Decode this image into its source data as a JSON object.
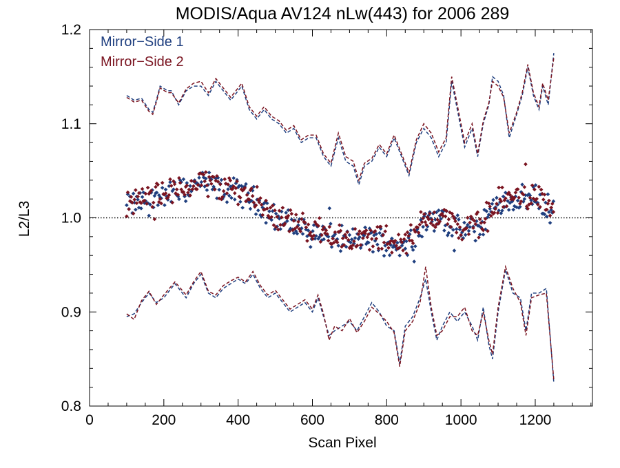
{
  "chart_data": {
    "type": "scatter",
    "title": "MODIS/Aqua AV124 nLw(443) for 2006 289",
    "xlabel": "Scan Pixel",
    "ylabel": "L2/L3",
    "xlim": [
      0,
      1354
    ],
    "ylim": [
      0.8,
      1.2
    ],
    "x_ticks": [
      0,
      200,
      400,
      600,
      800,
      1000,
      1200
    ],
    "y_ticks": [
      0.8,
      0.9,
      1.0,
      1.1,
      1.2
    ],
    "x_tick_labels": [
      "0",
      "200",
      "400",
      "600",
      "800",
      "1000",
      "1200"
    ],
    "y_tick_labels": [
      "0.8",
      "0.9",
      "1.0",
      "1.1",
      "1.2"
    ],
    "reference_line": 1.0,
    "legend_position": "top-left",
    "series": [
      {
        "name": "Mirror−Side 1",
        "color": "#1f3f7f",
        "mean": [
          [
            100,
            1.012
          ],
          [
            150,
            1.018
          ],
          [
            200,
            1.025
          ],
          [
            250,
            1.028
          ],
          [
            300,
            1.038
          ],
          [
            350,
            1.03
          ],
          [
            400,
            1.028
          ],
          [
            450,
            1.018
          ],
          [
            500,
            1.0
          ],
          [
            550,
            0.992
          ],
          [
            600,
            0.985
          ],
          [
            650,
            0.98
          ],
          [
            700,
            0.975
          ],
          [
            750,
            0.978
          ],
          [
            800,
            0.975
          ],
          [
            850,
            0.97
          ],
          [
            900,
            0.995
          ],
          [
            950,
            1.0
          ],
          [
            1000,
            0.985
          ],
          [
            1050,
            0.99
          ],
          [
            1100,
            1.015
          ],
          [
            1150,
            1.02
          ],
          [
            1200,
            1.022
          ],
          [
            1250,
            1.005
          ]
        ],
        "upper": [
          [
            100,
            1.13
          ],
          [
            120,
            1.125
          ],
          [
            140,
            1.127
          ],
          [
            160,
            1.115
          ],
          [
            170,
            1.112
          ],
          [
            180,
            1.125
          ],
          [
            190,
            1.14
          ],
          [
            210,
            1.135
          ],
          [
            220,
            1.135
          ],
          [
            240,
            1.12
          ],
          [
            260,
            1.135
          ],
          [
            280,
            1.14
          ],
          [
            300,
            1.14
          ],
          [
            320,
            1.13
          ],
          [
            340,
            1.145
          ],
          [
            360,
            1.135
          ],
          [
            380,
            1.125
          ],
          [
            390,
            1.13
          ],
          [
            410,
            1.14
          ],
          [
            430,
            1.115
          ],
          [
            450,
            1.105
          ],
          [
            470,
            1.115
          ],
          [
            490,
            1.105
          ],
          [
            510,
            1.1
          ],
          [
            530,
            1.09
          ],
          [
            550,
            1.095
          ],
          [
            570,
            1.08
          ],
          [
            590,
            1.085
          ],
          [
            610,
            1.085
          ],
          [
            630,
            1.065
          ],
          [
            650,
            1.055
          ],
          [
            670,
            1.085
          ],
          [
            690,
            1.06
          ],
          [
            710,
            1.055
          ],
          [
            725,
            1.035
          ],
          [
            740,
            1.055
          ],
          [
            760,
            1.06
          ],
          [
            780,
            1.075
          ],
          [
            800,
            1.065
          ],
          [
            820,
            1.085
          ],
          [
            840,
            1.065
          ],
          [
            860,
            1.045
          ],
          [
            880,
            1.08
          ],
          [
            900,
            1.095
          ],
          [
            920,
            1.085
          ],
          [
            940,
            1.065
          ],
          [
            960,
            1.08
          ],
          [
            975,
            1.145
          ],
          [
            990,
            1.115
          ],
          [
            1010,
            1.075
          ],
          [
            1030,
            1.095
          ],
          [
            1045,
            1.065
          ],
          [
            1060,
            1.1
          ],
          [
            1075,
            1.12
          ],
          [
            1085,
            1.15
          ],
          [
            1100,
            1.145
          ],
          [
            1115,
            1.13
          ],
          [
            1130,
            1.085
          ],
          [
            1150,
            1.11
          ],
          [
            1165,
            1.13
          ],
          [
            1180,
            1.16
          ],
          [
            1195,
            1.13
          ],
          [
            1210,
            1.115
          ],
          [
            1220,
            1.14
          ],
          [
            1235,
            1.12
          ],
          [
            1250,
            1.175
          ]
        ],
        "lower": [
          [
            100,
            0.895
          ],
          [
            120,
            0.898
          ],
          [
            140,
            0.91
          ],
          [
            160,
            0.92
          ],
          [
            180,
            0.91
          ],
          [
            200,
            0.915
          ],
          [
            230,
            0.93
          ],
          [
            260,
            0.915
          ],
          [
            280,
            0.93
          ],
          [
            300,
            0.94
          ],
          [
            320,
            0.92
          ],
          [
            340,
            0.915
          ],
          [
            360,
            0.925
          ],
          [
            380,
            0.93
          ],
          [
            400,
            0.935
          ],
          [
            420,
            0.93
          ],
          [
            440,
            0.94
          ],
          [
            460,
            0.925
          ],
          [
            480,
            0.915
          ],
          [
            500,
            0.92
          ],
          [
            520,
            0.91
          ],
          [
            540,
            0.9
          ],
          [
            560,
            0.905
          ],
          [
            580,
            0.91
          ],
          [
            600,
            0.9
          ],
          [
            615,
            0.915
          ],
          [
            630,
            0.895
          ],
          [
            645,
            0.875
          ],
          [
            660,
            0.88
          ],
          [
            680,
            0.885
          ],
          [
            700,
            0.89
          ],
          [
            720,
            0.88
          ],
          [
            740,
            0.895
          ],
          [
            760,
            0.91
          ],
          [
            780,
            0.9
          ],
          [
            800,
            0.885
          ],
          [
            820,
            0.88
          ],
          [
            835,
            0.845
          ],
          [
            850,
            0.885
          ],
          [
            870,
            0.895
          ],
          [
            890,
            0.915
          ],
          [
            905,
            0.935
          ],
          [
            920,
            0.9
          ],
          [
            935,
            0.87
          ],
          [
            950,
            0.885
          ],
          [
            970,
            0.9
          ],
          [
            990,
            0.89
          ],
          [
            1010,
            0.9
          ],
          [
            1030,
            0.885
          ],
          [
            1045,
            0.87
          ],
          [
            1060,
            0.905
          ],
          [
            1075,
            0.865
          ],
          [
            1085,
            0.85
          ],
          [
            1100,
            0.9
          ],
          [
            1120,
            0.945
          ],
          [
            1140,
            0.92
          ],
          [
            1160,
            0.915
          ],
          [
            1175,
            0.88
          ],
          [
            1190,
            0.92
          ],
          [
            1210,
            0.92
          ],
          [
            1230,
            0.925
          ],
          [
            1250,
            0.825
          ]
        ]
      },
      {
        "name": "Mirror−Side 2",
        "color": "#7a1420",
        "mean": [
          [
            100,
            1.015
          ],
          [
            150,
            1.02
          ],
          [
            200,
            1.028
          ],
          [
            250,
            1.03
          ],
          [
            300,
            1.04
          ],
          [
            350,
            1.032
          ],
          [
            400,
            1.03
          ],
          [
            450,
            1.02
          ],
          [
            500,
            1.002
          ],
          [
            550,
            0.995
          ],
          [
            600,
            0.988
          ],
          [
            650,
            0.983
          ],
          [
            700,
            0.977
          ],
          [
            750,
            0.98
          ],
          [
            800,
            0.977
          ],
          [
            850,
            0.972
          ],
          [
            900,
            0.998
          ],
          [
            950,
            1.003
          ],
          [
            1000,
            0.988
          ],
          [
            1050,
            0.993
          ],
          [
            1100,
            1.018
          ],
          [
            1150,
            1.023
          ],
          [
            1200,
            1.025
          ],
          [
            1250,
            1.008
          ]
        ],
        "upper": [
          [
            100,
            1.128
          ],
          [
            120,
            1.123
          ],
          [
            140,
            1.125
          ],
          [
            160,
            1.113
          ],
          [
            170,
            1.11
          ],
          [
            180,
            1.123
          ],
          [
            190,
            1.138
          ],
          [
            210,
            1.133
          ],
          [
            220,
            1.133
          ],
          [
            240,
            1.122
          ],
          [
            260,
            1.137
          ],
          [
            280,
            1.143
          ],
          [
            300,
            1.145
          ],
          [
            320,
            1.133
          ],
          [
            340,
            1.148
          ],
          [
            360,
            1.138
          ],
          [
            380,
            1.128
          ],
          [
            390,
            1.133
          ],
          [
            410,
            1.143
          ],
          [
            430,
            1.118
          ],
          [
            450,
            1.108
          ],
          [
            470,
            1.118
          ],
          [
            490,
            1.108
          ],
          [
            510,
            1.103
          ],
          [
            530,
            1.093
          ],
          [
            550,
            1.098
          ],
          [
            570,
            1.083
          ],
          [
            590,
            1.088
          ],
          [
            610,
            1.088
          ],
          [
            630,
            1.068
          ],
          [
            650,
            1.058
          ],
          [
            670,
            1.09
          ],
          [
            690,
            1.065
          ],
          [
            710,
            1.06
          ],
          [
            725,
            1.04
          ],
          [
            740,
            1.058
          ],
          [
            760,
            1.063
          ],
          [
            780,
            1.078
          ],
          [
            800,
            1.068
          ],
          [
            820,
            1.088
          ],
          [
            840,
            1.068
          ],
          [
            860,
            1.048
          ],
          [
            880,
            1.083
          ],
          [
            900,
            1.1
          ],
          [
            920,
            1.09
          ],
          [
            940,
            1.07
          ],
          [
            960,
            1.085
          ],
          [
            975,
            1.15
          ],
          [
            990,
            1.12
          ],
          [
            1010,
            1.08
          ],
          [
            1030,
            1.1
          ],
          [
            1045,
            1.068
          ],
          [
            1060,
            1.103
          ],
          [
            1075,
            1.122
          ],
          [
            1085,
            1.145
          ],
          [
            1100,
            1.14
          ],
          [
            1115,
            1.128
          ],
          [
            1130,
            1.09
          ],
          [
            1150,
            1.112
          ],
          [
            1165,
            1.133
          ],
          [
            1180,
            1.163
          ],
          [
            1195,
            1.133
          ],
          [
            1210,
            1.118
          ],
          [
            1220,
            1.143
          ],
          [
            1235,
            1.125
          ],
          [
            1250,
            1.17
          ]
        ],
        "lower": [
          [
            100,
            0.898
          ],
          [
            120,
            0.892
          ],
          [
            140,
            0.912
          ],
          [
            160,
            0.922
          ],
          [
            180,
            0.908
          ],
          [
            200,
            0.918
          ],
          [
            230,
            0.932
          ],
          [
            260,
            0.918
          ],
          [
            280,
            0.932
          ],
          [
            300,
            0.943
          ],
          [
            320,
            0.922
          ],
          [
            340,
            0.918
          ],
          [
            360,
            0.928
          ],
          [
            380,
            0.933
          ],
          [
            400,
            0.937
          ],
          [
            420,
            0.932
          ],
          [
            440,
            0.943
          ],
          [
            460,
            0.928
          ],
          [
            480,
            0.918
          ],
          [
            500,
            0.923
          ],
          [
            520,
            0.913
          ],
          [
            540,
            0.903
          ],
          [
            560,
            0.908
          ],
          [
            580,
            0.913
          ],
          [
            600,
            0.903
          ],
          [
            615,
            0.918
          ],
          [
            630,
            0.898
          ],
          [
            645,
            0.87
          ],
          [
            660,
            0.885
          ],
          [
            680,
            0.88
          ],
          [
            700,
            0.893
          ],
          [
            720,
            0.878
          ],
          [
            740,
            0.89
          ],
          [
            760,
            0.905
          ],
          [
            780,
            0.898
          ],
          [
            800,
            0.89
          ],
          [
            820,
            0.878
          ],
          [
            835,
            0.842
          ],
          [
            850,
            0.88
          ],
          [
            870,
            0.89
          ],
          [
            890,
            0.91
          ],
          [
            905,
            0.948
          ],
          [
            920,
            0.905
          ],
          [
            935,
            0.875
          ],
          [
            950,
            0.88
          ],
          [
            970,
            0.895
          ],
          [
            990,
            0.895
          ],
          [
            1010,
            0.905
          ],
          [
            1030,
            0.88
          ],
          [
            1045,
            0.875
          ],
          [
            1060,
            0.9
          ],
          [
            1075,
            0.87
          ],
          [
            1085,
            0.855
          ],
          [
            1100,
            0.905
          ],
          [
            1120,
            0.948
          ],
          [
            1140,
            0.925
          ],
          [
            1160,
            0.91
          ],
          [
            1175,
            0.875
          ],
          [
            1190,
            0.915
          ],
          [
            1210,
            0.918
          ],
          [
            1230,
            0.92
          ],
          [
            1250,
            0.828
          ]
        ]
      }
    ]
  }
}
